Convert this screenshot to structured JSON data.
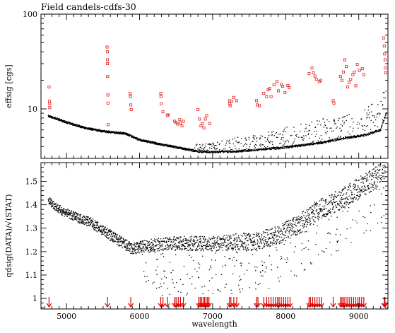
{
  "title": "Field  candels-cdfs-30",
  "chart_data": [
    {
      "type": "scatter",
      "xlabel": "",
      "ylabel": "effsig  [cgs]",
      "xlim": [
        4650,
        9400
      ],
      "ylim": [
        3.0,
        100
      ],
      "yscale": "log",
      "yticks": [
        10,
        100
      ],
      "ytick_labels": [
        "10",
        "100"
      ],
      "series": [
        {
          "kind": "dots",
          "color": "#000000",
          "curve": [
            [
              4750,
              8.4
            ],
            [
              5000,
              7.2
            ],
            [
              5250,
              6.3
            ],
            [
              5500,
              5.8
            ],
            [
              5800,
              5.5
            ],
            [
              6000,
              4.7
            ],
            [
              6300,
              4.2
            ],
            [
              6600,
              3.8
            ],
            [
              6800,
              3.55
            ],
            [
              7000,
              3.5
            ],
            [
              7300,
              3.55
            ],
            [
              7600,
              3.7
            ],
            [
              7900,
              3.85
            ],
            [
              8200,
              4.1
            ],
            [
              8500,
              4.4
            ],
            [
              8800,
              4.9
            ],
            [
              9100,
              5.3
            ],
            [
              9300,
              6.0
            ],
            [
              9380,
              9.0
            ]
          ]
        },
        {
          "kind": "squares",
          "color": "#e00000",
          "points": [
            [
              4760,
              17
            ],
            [
              4765,
              12
            ],
            [
              4770,
              11.3
            ],
            [
              4770,
              10.3
            ],
            [
              5555,
              45
            ],
            [
              5558,
              40
            ],
            [
              5560,
              33
            ],
            [
              5560,
              30
            ],
            [
              5562,
              22
            ],
            [
              5565,
              14
            ],
            [
              5567,
              11.5
            ],
            [
              5570,
              6.8
            ],
            [
              5870,
              14.5
            ],
            [
              5875,
              13.5
            ],
            [
              5880,
              11
            ],
            [
              5885,
              9.8
            ],
            [
              6290,
              14.5
            ],
            [
              6293,
              13.5
            ],
            [
              6297,
              11.3
            ],
            [
              6320,
              9.3
            ],
            [
              6380,
              8.6
            ],
            [
              6395,
              8.6
            ],
            [
              6480,
              7.4
            ],
            [
              6500,
              7.2
            ],
            [
              6520,
              6.9
            ],
            [
              6550,
              7.7
            ],
            [
              6560,
              7.1
            ],
            [
              6580,
              6.6
            ],
            [
              6600,
              7.4
            ],
            [
              6800,
              9.8
            ],
            [
              6820,
              7.8
            ],
            [
              6840,
              6.6
            ],
            [
              6860,
              7.0
            ],
            [
              6880,
              6.3
            ],
            [
              6900,
              7.8
            ],
            [
              6920,
              8.5
            ],
            [
              6960,
              7.0
            ],
            [
              7230,
              12.2
            ],
            [
              7235,
              11.3
            ],
            [
              7240,
              10.8
            ],
            [
              7260,
              12.0
            ],
            [
              7290,
              13.2
            ],
            [
              7330,
              12.2
            ],
            [
              7600,
              12.2
            ],
            [
              7610,
              11.0
            ],
            [
              7640,
              10.8
            ],
            [
              7700,
              14.6
            ],
            [
              7740,
              13.5
            ],
            [
              7760,
              15.9
            ],
            [
              7780,
              16.4
            ],
            [
              7800,
              13.5
            ],
            [
              7840,
              17.9
            ],
            [
              7880,
              19.4
            ],
            [
              7900,
              15.5
            ],
            [
              7940,
              18.1
            ],
            [
              7960,
              17.3
            ],
            [
              7990,
              14.8
            ],
            [
              8030,
              17.6
            ],
            [
              8050,
              16.8
            ],
            [
              8320,
              23.5
            ],
            [
              8360,
              27.0
            ],
            [
              8380,
              24.0
            ],
            [
              8400,
              22.2
            ],
            [
              8420,
              20.5
            ],
            [
              8460,
              19.4
            ],
            [
              8480,
              20.0
            ],
            [
              8650,
              12.2
            ],
            [
              8660,
              11.5
            ],
            [
              8750,
              22.0
            ],
            [
              8770,
              20.0
            ],
            [
              8790,
              24.5
            ],
            [
              8810,
              33.0
            ],
            [
              8830,
              28.0
            ],
            [
              8850,
              17.0
            ],
            [
              8870,
              19.0
            ],
            [
              8890,
              20.5
            ],
            [
              8920,
              23.0
            ],
            [
              8940,
              24.5
            ],
            [
              8960,
              17.5
            ],
            [
              8980,
              29.5
            ],
            [
              9010,
              25.5
            ],
            [
              9050,
              26.5
            ],
            [
              9070,
              23.0
            ],
            [
              9340,
              56.0
            ],
            [
              9350,
              46.0
            ],
            [
              9355,
              38.0
            ],
            [
              9360,
              33.0
            ],
            [
              9365,
              27.0
            ],
            [
              9370,
              24.0
            ]
          ]
        }
      ]
    },
    {
      "type": "scatter",
      "xlabel": "wavelength",
      "ylabel": "qdsig(DATA)/√(STAT)",
      "xlim": [
        4650,
        9400
      ],
      "ylim": [
        0.955,
        1.58
      ],
      "xticks": [
        5000,
        6000,
        7000,
        8000,
        9000
      ],
      "xtick_labels": [
        "5000",
        "6000",
        "7000",
        "8000",
        "9000"
      ],
      "yticks": [
        1.0,
        1.1,
        1.2,
        1.3,
        1.4,
        1.5
      ],
      "ytick_labels": [
        "1",
        "1.1",
        "1.2",
        "1.3",
        "1.4",
        "1.5"
      ],
      "series": [
        {
          "kind": "dots",
          "color": "#000000",
          "curve": [
            [
              4750,
              1.42
            ],
            [
              4900,
              1.38
            ],
            [
              5100,
              1.35
            ],
            [
              5300,
              1.33
            ],
            [
              5500,
              1.29
            ],
            [
              5700,
              1.25
            ],
            [
              5900,
              1.21
            ],
            [
              6100,
              1.225
            ],
            [
              6400,
              1.235
            ],
            [
              6700,
              1.235
            ],
            [
              7000,
              1.235
            ],
            [
              7300,
              1.24
            ],
            [
              7600,
              1.245
            ],
            [
              7900,
              1.27
            ],
            [
              8200,
              1.32
            ],
            [
              8400,
              1.37
            ],
            [
              8600,
              1.4
            ],
            [
              8800,
              1.43
            ],
            [
              9000,
              1.47
            ],
            [
              9200,
              1.51
            ],
            [
              9370,
              1.56
            ]
          ]
        },
        {
          "kind": "arrows",
          "color": "#e00000",
          "x": [
            4760,
            5560,
            5880,
            6290,
            6320,
            6380,
            6480,
            6500,
            6530,
            6560,
            6600,
            6810,
            6830,
            6850,
            6870,
            6890,
            6910,
            6930,
            6950,
            7230,
            7250,
            7290,
            7330,
            7600,
            7620,
            7700,
            7740,
            7770,
            7800,
            7830,
            7860,
            7890,
            7910,
            7940,
            7970,
            8000,
            8030,
            8060,
            8320,
            8340,
            8370,
            8400,
            8430,
            8460,
            8490,
            8650,
            8750,
            8770,
            8790,
            8810,
            8840,
            8870,
            8900,
            8930,
            8960,
            8990,
            9010,
            9040,
            9070,
            9350,
            9360
          ]
        }
      ]
    }
  ]
}
